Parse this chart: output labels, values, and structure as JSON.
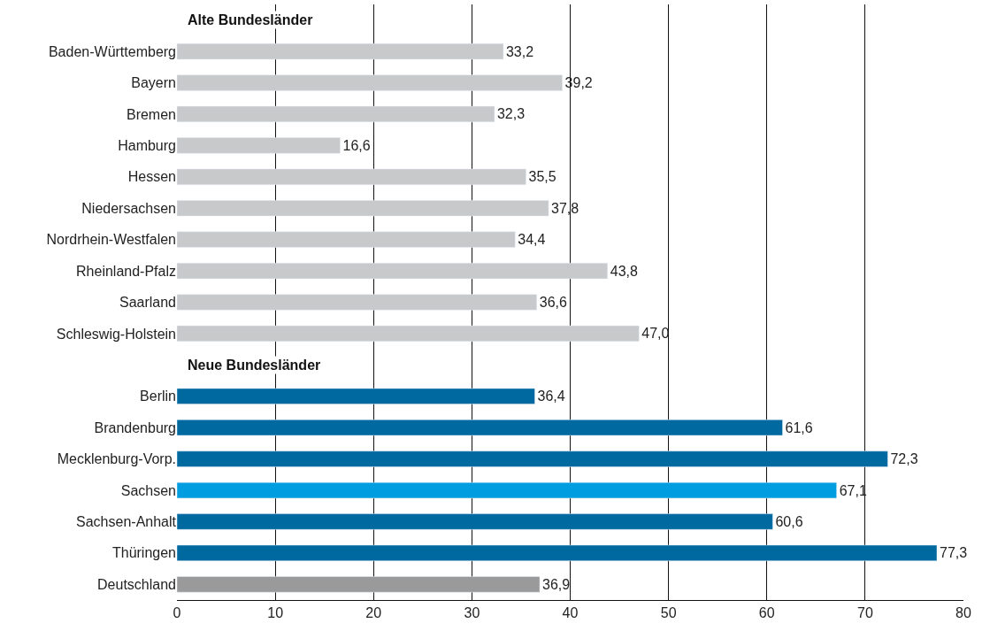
{
  "chart_data": {
    "type": "bar",
    "orientation": "horizontal",
    "categories": [
      null,
      "Baden-Württemberg",
      "Bayern",
      "Bremen",
      "Hamburg",
      "Hessen",
      "Niedersachsen",
      "Nordrhein-Westfalen",
      "Rheinland-Pfalz",
      "Saarland",
      "Schleswig-Holstein",
      null,
      "Berlin",
      "Brandenburg",
      "Mecklenburg-Vorp.",
      "Sachsen",
      "Sachsen-Anhalt",
      "Thüringen",
      "Deutschland"
    ],
    "values": [
      null,
      33.2,
      39.2,
      32.3,
      16.6,
      35.5,
      37.8,
      34.4,
      43.8,
      36.6,
      47.0,
      null,
      36.4,
      61.6,
      72.3,
      67.1,
      60.6,
      77.3,
      36.9
    ],
    "value_labels": [
      null,
      "33,2",
      "39,2",
      "32,3",
      "16,6",
      "35,5",
      "37,8",
      "34,4",
      "43,8",
      "36,6",
      "47,0",
      null,
      "36,4",
      "61,6",
      "72,3",
      "67,1",
      "60,6",
      "77,3",
      "36,9"
    ],
    "colors": [
      "#c8c9cb",
      "#c8c9cb",
      "#c8c9cb",
      "#c8c9cb",
      "#c8c9cb",
      "#c8c9cb",
      "#c8c9cb",
      "#c8c9cb",
      "#c8c9cb",
      "#c8c9cb",
      "#c8c9cb",
      "#0069a0",
      "#0069a0",
      "#0069a0",
      "#0069a0",
      "#009ee0",
      "#0069a0",
      "#0069a0",
      "#9a9a9a"
    ],
    "annotations": [
      "Alte Bundesländer",
      "Neue Bundesländer"
    ],
    "xlim": [
      0,
      80
    ],
    "xticks": [
      0,
      10,
      20,
      30,
      40,
      50,
      60,
      70,
      80
    ],
    "grid": "x",
    "legend": false
  }
}
